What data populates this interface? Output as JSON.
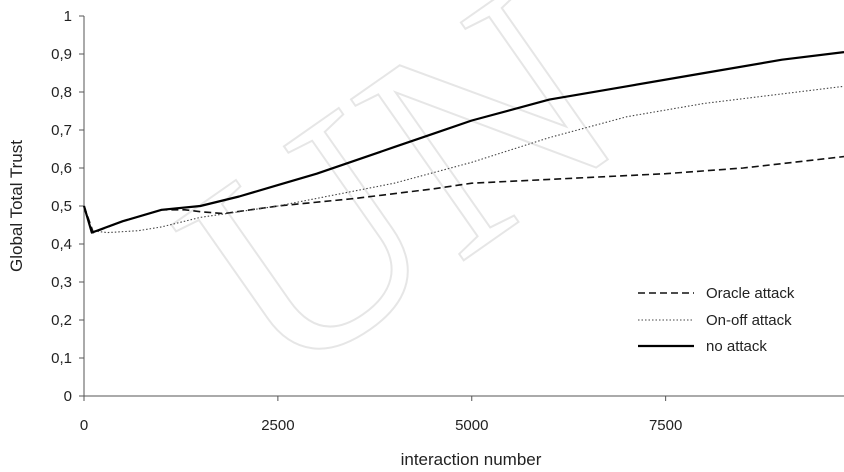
{
  "chart_data": {
    "type": "line",
    "xlabel": "interaction number",
    "ylabel": "Global Total Trust",
    "xlim": [
      0,
      9800
    ],
    "ylim": [
      0,
      1
    ],
    "x_ticks": [
      0,
      2500,
      5000,
      7500
    ],
    "x_tick_labels": [
      "0",
      "2500",
      "5000",
      "7500"
    ],
    "y_ticks": [
      0,
      0.1,
      0.2,
      0.3,
      0.4,
      0.5,
      0.6,
      0.7,
      0.8,
      0.9,
      1
    ],
    "y_tick_labels": [
      "0",
      "0,1",
      "0,2",
      "0,3",
      "0,4",
      "0,5",
      "0,6",
      "0,7",
      "0,8",
      "0,9",
      "1"
    ],
    "grid": false,
    "legend_position": "bottom-right",
    "series": [
      {
        "name": "Oracle attack",
        "dash": "dashed",
        "color": "#111111",
        "x": [
          0,
          120,
          500,
          1000,
          1300,
          1500,
          1800,
          2500,
          3500,
          4500,
          5000,
          6000,
          7000,
          7500,
          8500,
          9800
        ],
        "y": [
          0.5,
          0.43,
          0.46,
          0.49,
          0.49,
          0.485,
          0.48,
          0.5,
          0.52,
          0.545,
          0.56,
          0.57,
          0.58,
          0.585,
          0.6,
          0.63
        ]
      },
      {
        "name": "On-off attack",
        "dash": "dotted",
        "color": "#444444",
        "x": [
          0,
          100,
          300,
          700,
          1000,
          1500,
          2000,
          2500,
          3000,
          4000,
          5000,
          6000,
          7000,
          8000,
          9000,
          9800
        ],
        "y": [
          0.5,
          0.435,
          0.43,
          0.435,
          0.445,
          0.47,
          0.485,
          0.5,
          0.52,
          0.56,
          0.615,
          0.68,
          0.735,
          0.77,
          0.795,
          0.815
        ]
      },
      {
        "name": "no attack",
        "dash": "solid",
        "color": "#000000",
        "x": [
          0,
          100,
          500,
          1000,
          1500,
          2000,
          2500,
          3000,
          3500,
          4000,
          4500,
          5000,
          6000,
          7000,
          8000,
          9000,
          9800
        ],
        "y": [
          0.5,
          0.43,
          0.46,
          0.49,
          0.5,
          0.525,
          0.555,
          0.585,
          0.62,
          0.655,
          0.69,
          0.725,
          0.78,
          0.815,
          0.85,
          0.885,
          0.905
        ]
      }
    ]
  }
}
